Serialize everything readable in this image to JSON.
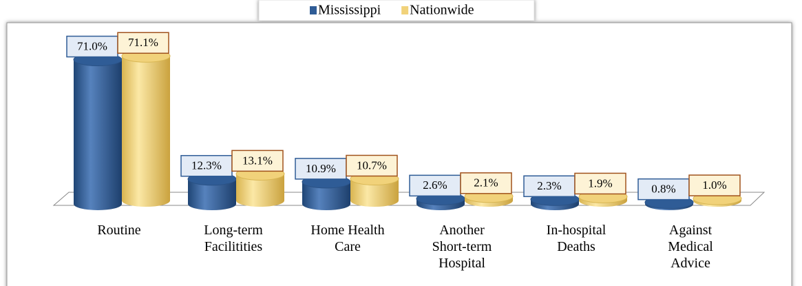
{
  "chart_data": {
    "type": "bar3d",
    "categories": [
      "Routine",
      "Long-term\nFacilitities",
      "Home Health\nCare",
      "Another\nShort-term\nHospital",
      "In-hospital\nDeaths",
      "Against\nMedical\nAdvice"
    ],
    "series": [
      {
        "name": "Mississippi",
        "color": "#2f5c96",
        "values": [
          71.0,
          12.3,
          10.9,
          2.6,
          2.3,
          0.8
        ],
        "value_labels": [
          "71.0%",
          "12.3%",
          "10.9%",
          "2.6%",
          "2.3%",
          "0.8%"
        ]
      },
      {
        "name": "Nationwide",
        "color": "#f1d27a",
        "values": [
          71.1,
          13.1,
          10.7,
          2.1,
          1.9,
          1.0
        ],
        "value_labels": [
          "71.1%",
          "13.1%",
          "10.7%",
          "2.1%",
          "1.9%",
          "1.0%"
        ]
      }
    ],
    "legend": "top"
  }
}
